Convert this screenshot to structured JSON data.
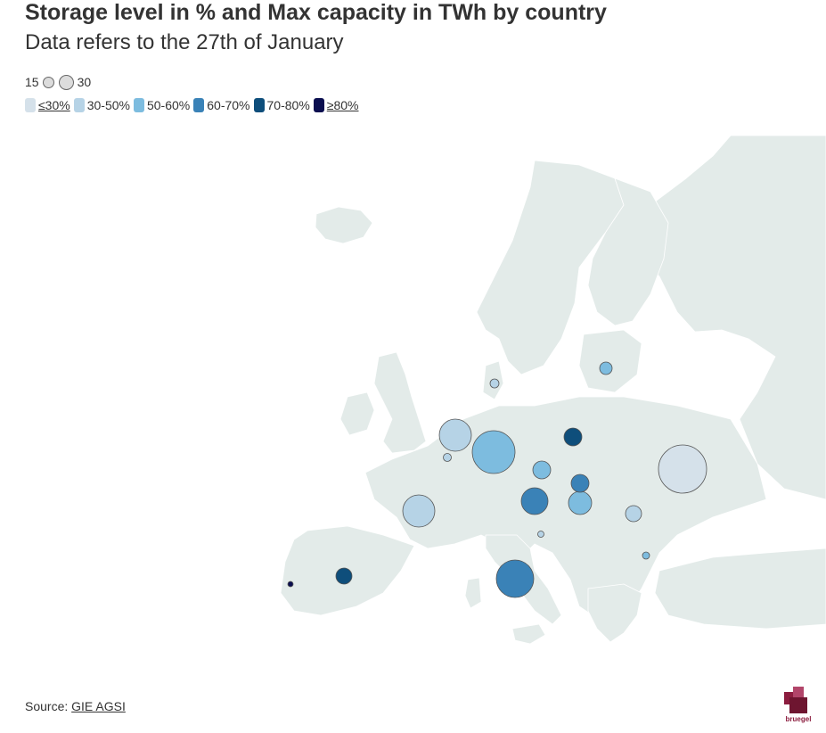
{
  "title": "Storage level in % and Max capacity in TWh by country",
  "subtitle": "Data refers to the 27th of January",
  "size_legend": {
    "small": "15",
    "large": "30"
  },
  "color_legend": [
    {
      "label": "≤30%",
      "color": "#d5e1ea"
    },
    {
      "label": "30-50%",
      "color": "#b6d3e6"
    },
    {
      "label": "50-60%",
      "color": "#7dbcdf"
    },
    {
      "label": "60-70%",
      "color": "#3a82b7"
    },
    {
      "label": "70-80%",
      "color": "#0e4e7b"
    },
    {
      "label": "≥80%",
      "color": "#0a0e4f"
    }
  ],
  "map": {
    "land_color": "#e3ebe9",
    "border_color": "#ffffff",
    "bubble_stroke": "#555555"
  },
  "source": {
    "prefix": "Source: ",
    "link_text": "GIE AGSI"
  },
  "logo": {
    "text": "bruegel",
    "color": "#8c1d3f"
  }
}
